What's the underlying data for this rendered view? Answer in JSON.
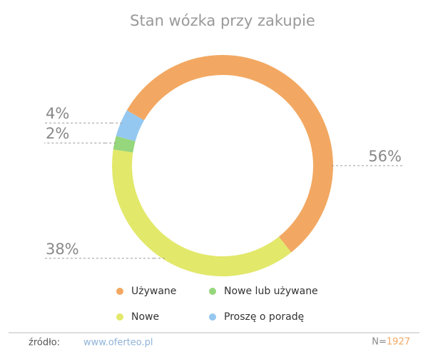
{
  "chart_data": {
    "type": "donut",
    "title": "Stan wózka przy zakupie",
    "series": [
      {
        "name": "Używane",
        "color": "#f2a862",
        "values": [
          56
        ],
        "value_labels": [
          "56%"
        ]
      },
      {
        "name": "Nowe",
        "color": "#e2e86a",
        "values": [
          38
        ],
        "value_labels": [
          "38%"
        ]
      },
      {
        "name": "Nowe lub używane",
        "color": "#96d67c",
        "values": [
          2
        ],
        "value_labels": [
          "2%"
        ]
      },
      {
        "name": "Proszę o poradę",
        "color": "#95c8f0",
        "values": [
          4
        ],
        "value_labels": [
          "4%"
        ]
      }
    ]
  },
  "footer": {
    "source_label": "źródło:",
    "source_url": "www.oferteo.pl",
    "n_label": "N=",
    "n_value": 1927
  }
}
